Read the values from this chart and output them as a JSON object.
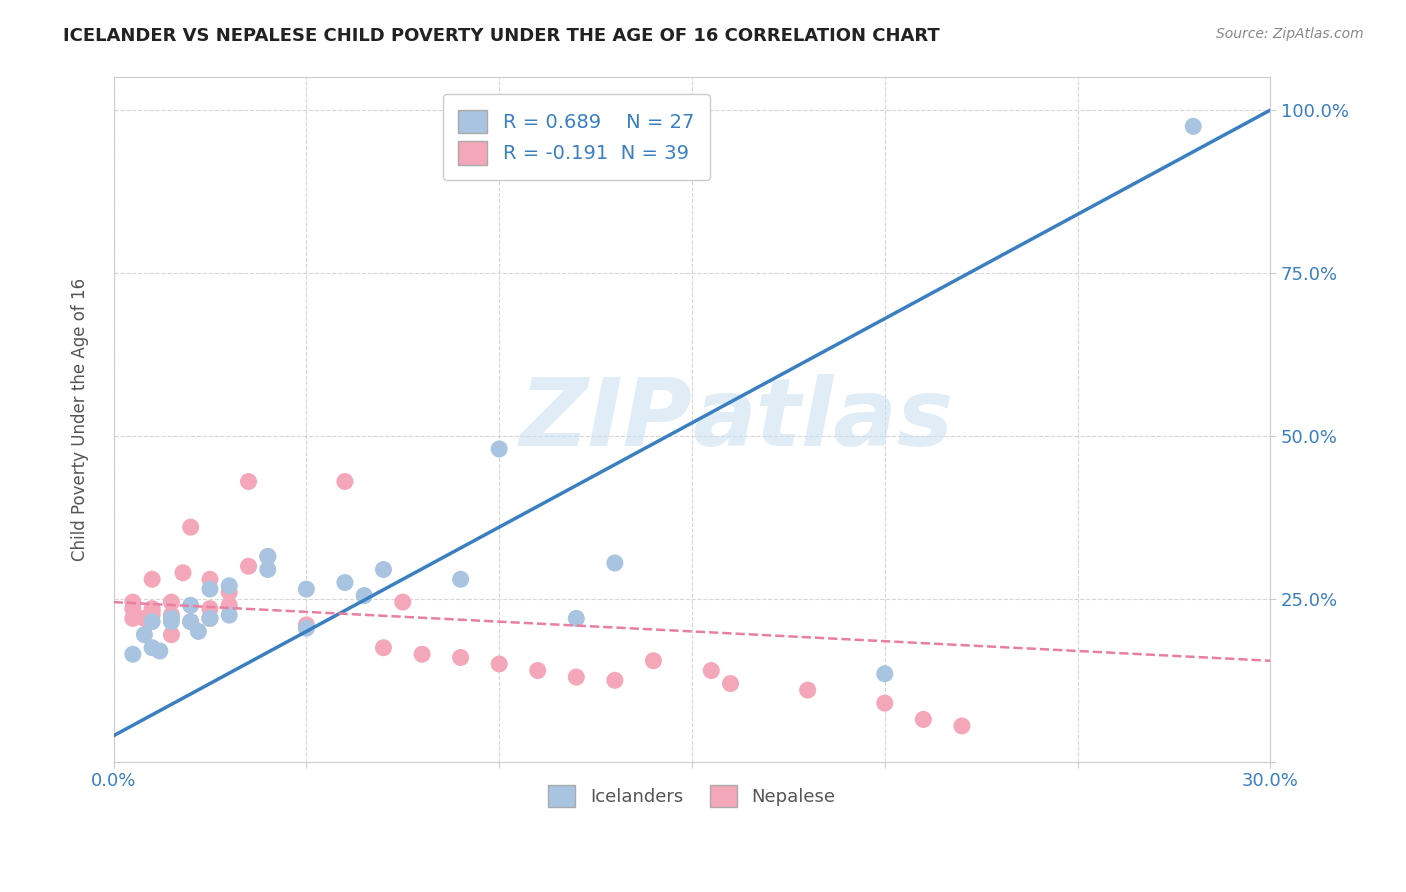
{
  "title": "ICELANDER VS NEPALESE CHILD POVERTY UNDER THE AGE OF 16 CORRELATION CHART",
  "source": "Source: ZipAtlas.com",
  "xlabel": "",
  "ylabel": "Child Poverty Under the Age of 16",
  "xlim": [
    0.0,
    0.3
  ],
  "ylim": [
    0.0,
    1.05
  ],
  "x_ticks": [
    0.0,
    0.05,
    0.1,
    0.15,
    0.2,
    0.25,
    0.3
  ],
  "x_tick_labels": [
    "0.0%",
    "",
    "",
    "",
    "",
    "",
    "30.0%"
  ],
  "y_ticks": [
    0.0,
    0.25,
    0.5,
    0.75,
    1.0
  ],
  "y_tick_labels": [
    "",
    "25.0%",
    "50.0%",
    "75.0%",
    "100.0%"
  ],
  "r_icelander": 0.689,
  "n_icelander": 27,
  "r_nepalese": -0.191,
  "n_nepalese": 39,
  "icelander_color": "#a8c4e0",
  "nepalese_color": "#f4a7b9",
  "icelander_line_color": "#3a7fc1",
  "nepalese_line_color": "#e87fa0",
  "watermark_part1": "ZIP",
  "watermark_part2": "atlas",
  "background_color": "#ffffff",
  "ice_line_x": [
    0.0,
    0.3
  ],
  "ice_line_y": [
    0.04,
    1.0
  ],
  "nep_line_x": [
    0.0,
    0.3
  ],
  "nep_line_y": [
    0.245,
    0.155
  ],
  "icelander_scatter_x": [
    0.005,
    0.008,
    0.01,
    0.01,
    0.012,
    0.015,
    0.015,
    0.02,
    0.02,
    0.022,
    0.025,
    0.025,
    0.03,
    0.03,
    0.04,
    0.04,
    0.05,
    0.05,
    0.06,
    0.065,
    0.07,
    0.09,
    0.1,
    0.12,
    0.13,
    0.2,
    0.28
  ],
  "icelander_scatter_y": [
    0.165,
    0.195,
    0.175,
    0.215,
    0.17,
    0.215,
    0.22,
    0.215,
    0.24,
    0.2,
    0.22,
    0.265,
    0.225,
    0.27,
    0.295,
    0.315,
    0.205,
    0.265,
    0.275,
    0.255,
    0.295,
    0.28,
    0.48,
    0.22,
    0.305,
    0.135,
    0.975
  ],
  "nepalese_scatter_x": [
    0.005,
    0.005,
    0.005,
    0.008,
    0.01,
    0.01,
    0.01,
    0.01,
    0.015,
    0.015,
    0.015,
    0.018,
    0.02,
    0.02,
    0.025,
    0.025,
    0.025,
    0.03,
    0.03,
    0.035,
    0.035,
    0.04,
    0.05,
    0.06,
    0.07,
    0.075,
    0.08,
    0.09,
    0.1,
    0.11,
    0.12,
    0.13,
    0.14,
    0.155,
    0.16,
    0.18,
    0.2,
    0.21,
    0.22
  ],
  "nepalese_scatter_y": [
    0.22,
    0.235,
    0.245,
    0.22,
    0.225,
    0.23,
    0.235,
    0.28,
    0.195,
    0.225,
    0.245,
    0.29,
    0.215,
    0.36,
    0.22,
    0.235,
    0.28,
    0.24,
    0.26,
    0.3,
    0.43,
    0.315,
    0.21,
    0.43,
    0.175,
    0.245,
    0.165,
    0.16,
    0.15,
    0.14,
    0.13,
    0.125,
    0.155,
    0.14,
    0.12,
    0.11,
    0.09,
    0.065,
    0.055
  ]
}
